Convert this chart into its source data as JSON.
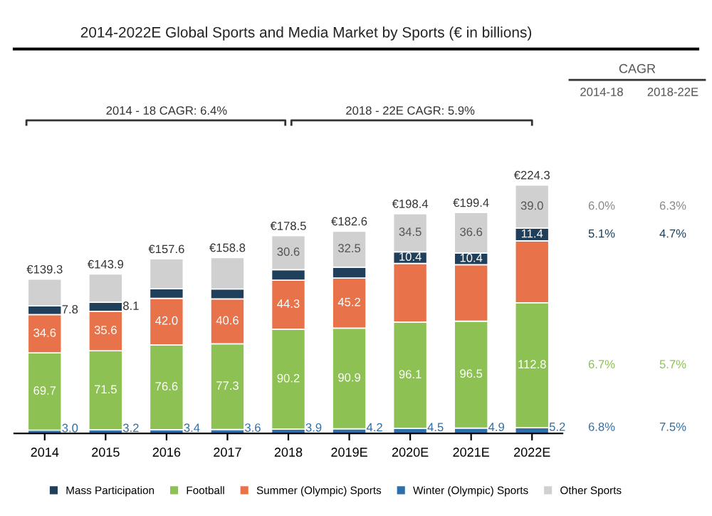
{
  "chart_data": {
    "type": "bar",
    "stacked": true,
    "title": "2014-2022E Global Sports and Media Market by Sports (€ in billions)",
    "categories": [
      "2014",
      "2015",
      "2016",
      "2017",
      "2018",
      "2019E",
      "2020E",
      "2021E",
      "2022E"
    ],
    "series": [
      {
        "name": "Winter (Olympic) Sports",
        "color": "#2f6ea6",
        "values": [
          3.0,
          3.2,
          3.4,
          3.6,
          3.9,
          4.2,
          4.5,
          4.9,
          5.2
        ],
        "value_labels": [
          "3.0",
          "3.2",
          "3.4",
          "3.6",
          "3.9",
          "4.2",
          "4.5",
          "4.9",
          "5.2"
        ]
      },
      {
        "name": "Football",
        "color": "#8dc153",
        "values": [
          69.7,
          71.5,
          76.6,
          77.3,
          90.2,
          90.9,
          96.1,
          96.5,
          112.8
        ],
        "value_labels": [
          "69.7",
          "71.5",
          "76.6",
          "77.3",
          "90.2",
          "90.9",
          "96.1",
          "96.5",
          "112.8"
        ]
      },
      {
        "name": "Summer (Olympic) Sports",
        "color": "#e8734a",
        "values": [
          34.6,
          35.6,
          42.0,
          40.6,
          44.3,
          45.2,
          52.9,
          51.0,
          55.9
        ],
        "value_labels": [
          "34.6",
          "35.6",
          "42.0",
          "40.6",
          "44.3",
          "45.2",
          null,
          null,
          null
        ]
      },
      {
        "name": "Mass Participation",
        "color": "#1f3f5b",
        "values": [
          7.8,
          8.1,
          8.6,
          8.9,
          9.5,
          9.8,
          10.4,
          10.4,
          11.4
        ],
        "value_labels": [
          "7.8",
          "8.1",
          null,
          null,
          null,
          null,
          "10.4",
          "10.4",
          "11.4"
        ]
      },
      {
        "name": "Other Sports",
        "color": "#d0d0d0",
        "values": [
          24.2,
          25.5,
          27.0,
          28.4,
          30.6,
          32.5,
          34.5,
          36.6,
          39.0
        ],
        "value_labels": [
          null,
          null,
          null,
          null,
          "30.6",
          "32.5",
          "34.5",
          "36.6",
          "39.0"
        ]
      }
    ],
    "totals": [
      "€139.3",
      "€143.9",
      "€157.6",
      "€158.8",
      "€178.5",
      "€182.6",
      "€198.4",
      "€199.4",
      "€224.3"
    ],
    "annotations": [
      "2014 - 18 CAGR: 6.4%",
      "2018 - 22E CAGR: 5.9%",
      "CAGR",
      "2014-18",
      "2018-22E",
      "6.0%",
      "6.3%",
      "5.1%",
      "4.7%",
      "6.7%",
      "5.7%",
      "6.8%",
      "7.5%"
    ],
    "legend": "bottom"
  }
}
